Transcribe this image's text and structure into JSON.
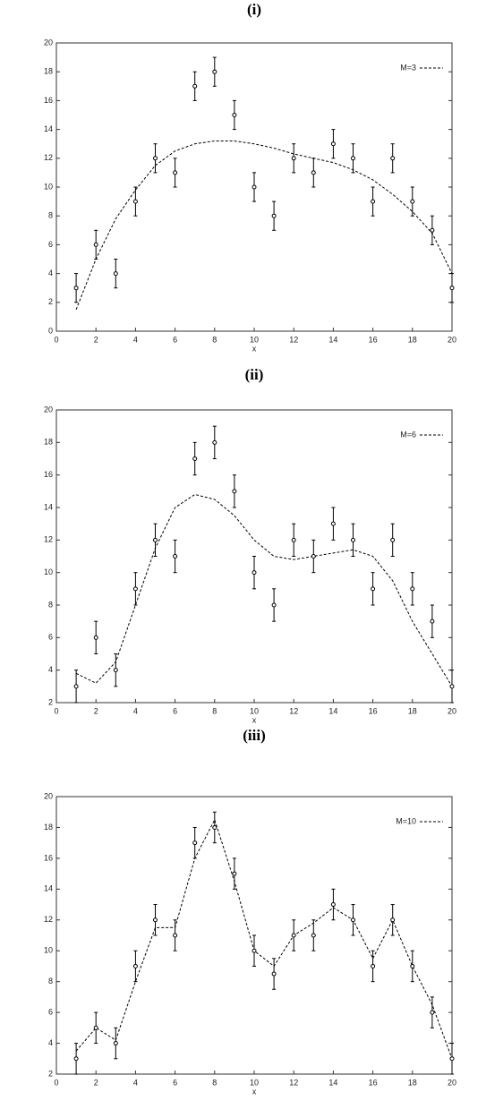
{
  "chart_data": [
    {
      "type": "scatter",
      "title": "(i)",
      "xlabel": "x",
      "x": [
        1,
        2,
        3,
        4,
        5,
        6,
        7,
        8,
        9,
        10,
        11,
        12,
        13,
        14,
        15,
        16,
        17,
        18,
        19,
        20
      ],
      "values": [
        3,
        6,
        4,
        9,
        12,
        11,
        17,
        18,
        15,
        10,
        8,
        12,
        11,
        13,
        12,
        9,
        12,
        9,
        7,
        3
      ],
      "errors": [
        1,
        1,
        1,
        1,
        1,
        1,
        1,
        1,
        1,
        1,
        1,
        1,
        1,
        1,
        1,
        1,
        1,
        1,
        1,
        1
      ],
      "series": [
        {
          "name": "M=3",
          "color": "#000000",
          "values": [
            1.5,
            5,
            7.8,
            9.8,
            11.5,
            12.5,
            13,
            13.2,
            13.2,
            13,
            12.7,
            12.3,
            12,
            11.7,
            11.2,
            10.5,
            9.5,
            8.3,
            6.8,
            4
          ]
        }
      ],
      "xlim": [
        0,
        20
      ],
      "xticks": [
        0,
        2,
        4,
        6,
        8,
        10,
        12,
        14,
        16,
        18,
        20
      ],
      "ylim": [
        0,
        20
      ],
      "yticks": [
        0,
        2,
        4,
        6,
        8,
        10,
        12,
        14,
        16,
        18,
        20
      ],
      "legend": "upper right"
    },
    {
      "type": "scatter",
      "title": "(ii)",
      "xlabel": "x",
      "x": [
        1,
        2,
        3,
        4,
        5,
        6,
        7,
        8,
        9,
        10,
        11,
        12,
        13,
        14,
        15,
        16,
        17,
        18,
        19,
        20
      ],
      "values": [
        3,
        6,
        4,
        9,
        12,
        11,
        17,
        18,
        15,
        10,
        8,
        12,
        11,
        13,
        12,
        9,
        12,
        9,
        7,
        3
      ],
      "errors": [
        1,
        1,
        1,
        1,
        1,
        1,
        1,
        1,
        1,
        1,
        1,
        1,
        1,
        1,
        1,
        1,
        1,
        1,
        1,
        1
      ],
      "series": [
        {
          "name": "M=6",
          "color": "#000000",
          "values": [
            3.8,
            3.2,
            4.5,
            8,
            11.5,
            14,
            14.8,
            14.5,
            13.5,
            12,
            11,
            10.8,
            11,
            11.2,
            11.4,
            11,
            9.5,
            7,
            5,
            3
          ]
        }
      ],
      "xlim": [
        0,
        20
      ],
      "xticks": [
        0,
        2,
        4,
        6,
        8,
        10,
        12,
        14,
        16,
        18,
        20
      ],
      "ylim": [
        2,
        20
      ],
      "yticks": [
        2,
        4,
        6,
        8,
        10,
        12,
        14,
        16,
        18,
        20
      ],
      "legend": "upper right"
    },
    {
      "type": "scatter",
      "title": "(iii)",
      "xlabel": "x",
      "x": [
        1,
        2,
        3,
        4,
        5,
        6,
        7,
        8,
        9,
        10,
        11,
        12,
        13,
        14,
        15,
        16,
        17,
        18,
        19,
        20
      ],
      "values": [
        3,
        5,
        4,
        9,
        12,
        11,
        17,
        18,
        15,
        10,
        8.5,
        11,
        11,
        13,
        12,
        9,
        12,
        9,
        6,
        3
      ],
      "errors": [
        1,
        1,
        1,
        1,
        1,
        1,
        1,
        1,
        1,
        1,
        1,
        1,
        1,
        1,
        1,
        1,
        1,
        1,
        1,
        1
      ],
      "series": [
        {
          "name": "M=10",
          "color": "#000000",
          "values": [
            3.5,
            5,
            4.2,
            8,
            11.5,
            11.5,
            16,
            18.5,
            14.5,
            10,
            9,
            11,
            11.8,
            12.8,
            12,
            9.5,
            12,
            9,
            6.5,
            3
          ]
        }
      ],
      "xlim": [
        0,
        20
      ],
      "xticks": [
        0,
        2,
        4,
        6,
        8,
        10,
        12,
        14,
        16,
        18,
        20
      ],
      "ylim": [
        2,
        20
      ],
      "yticks": [
        2,
        4,
        6,
        8,
        10,
        12,
        14,
        16,
        18,
        20
      ],
      "legend": "upper right"
    }
  ]
}
